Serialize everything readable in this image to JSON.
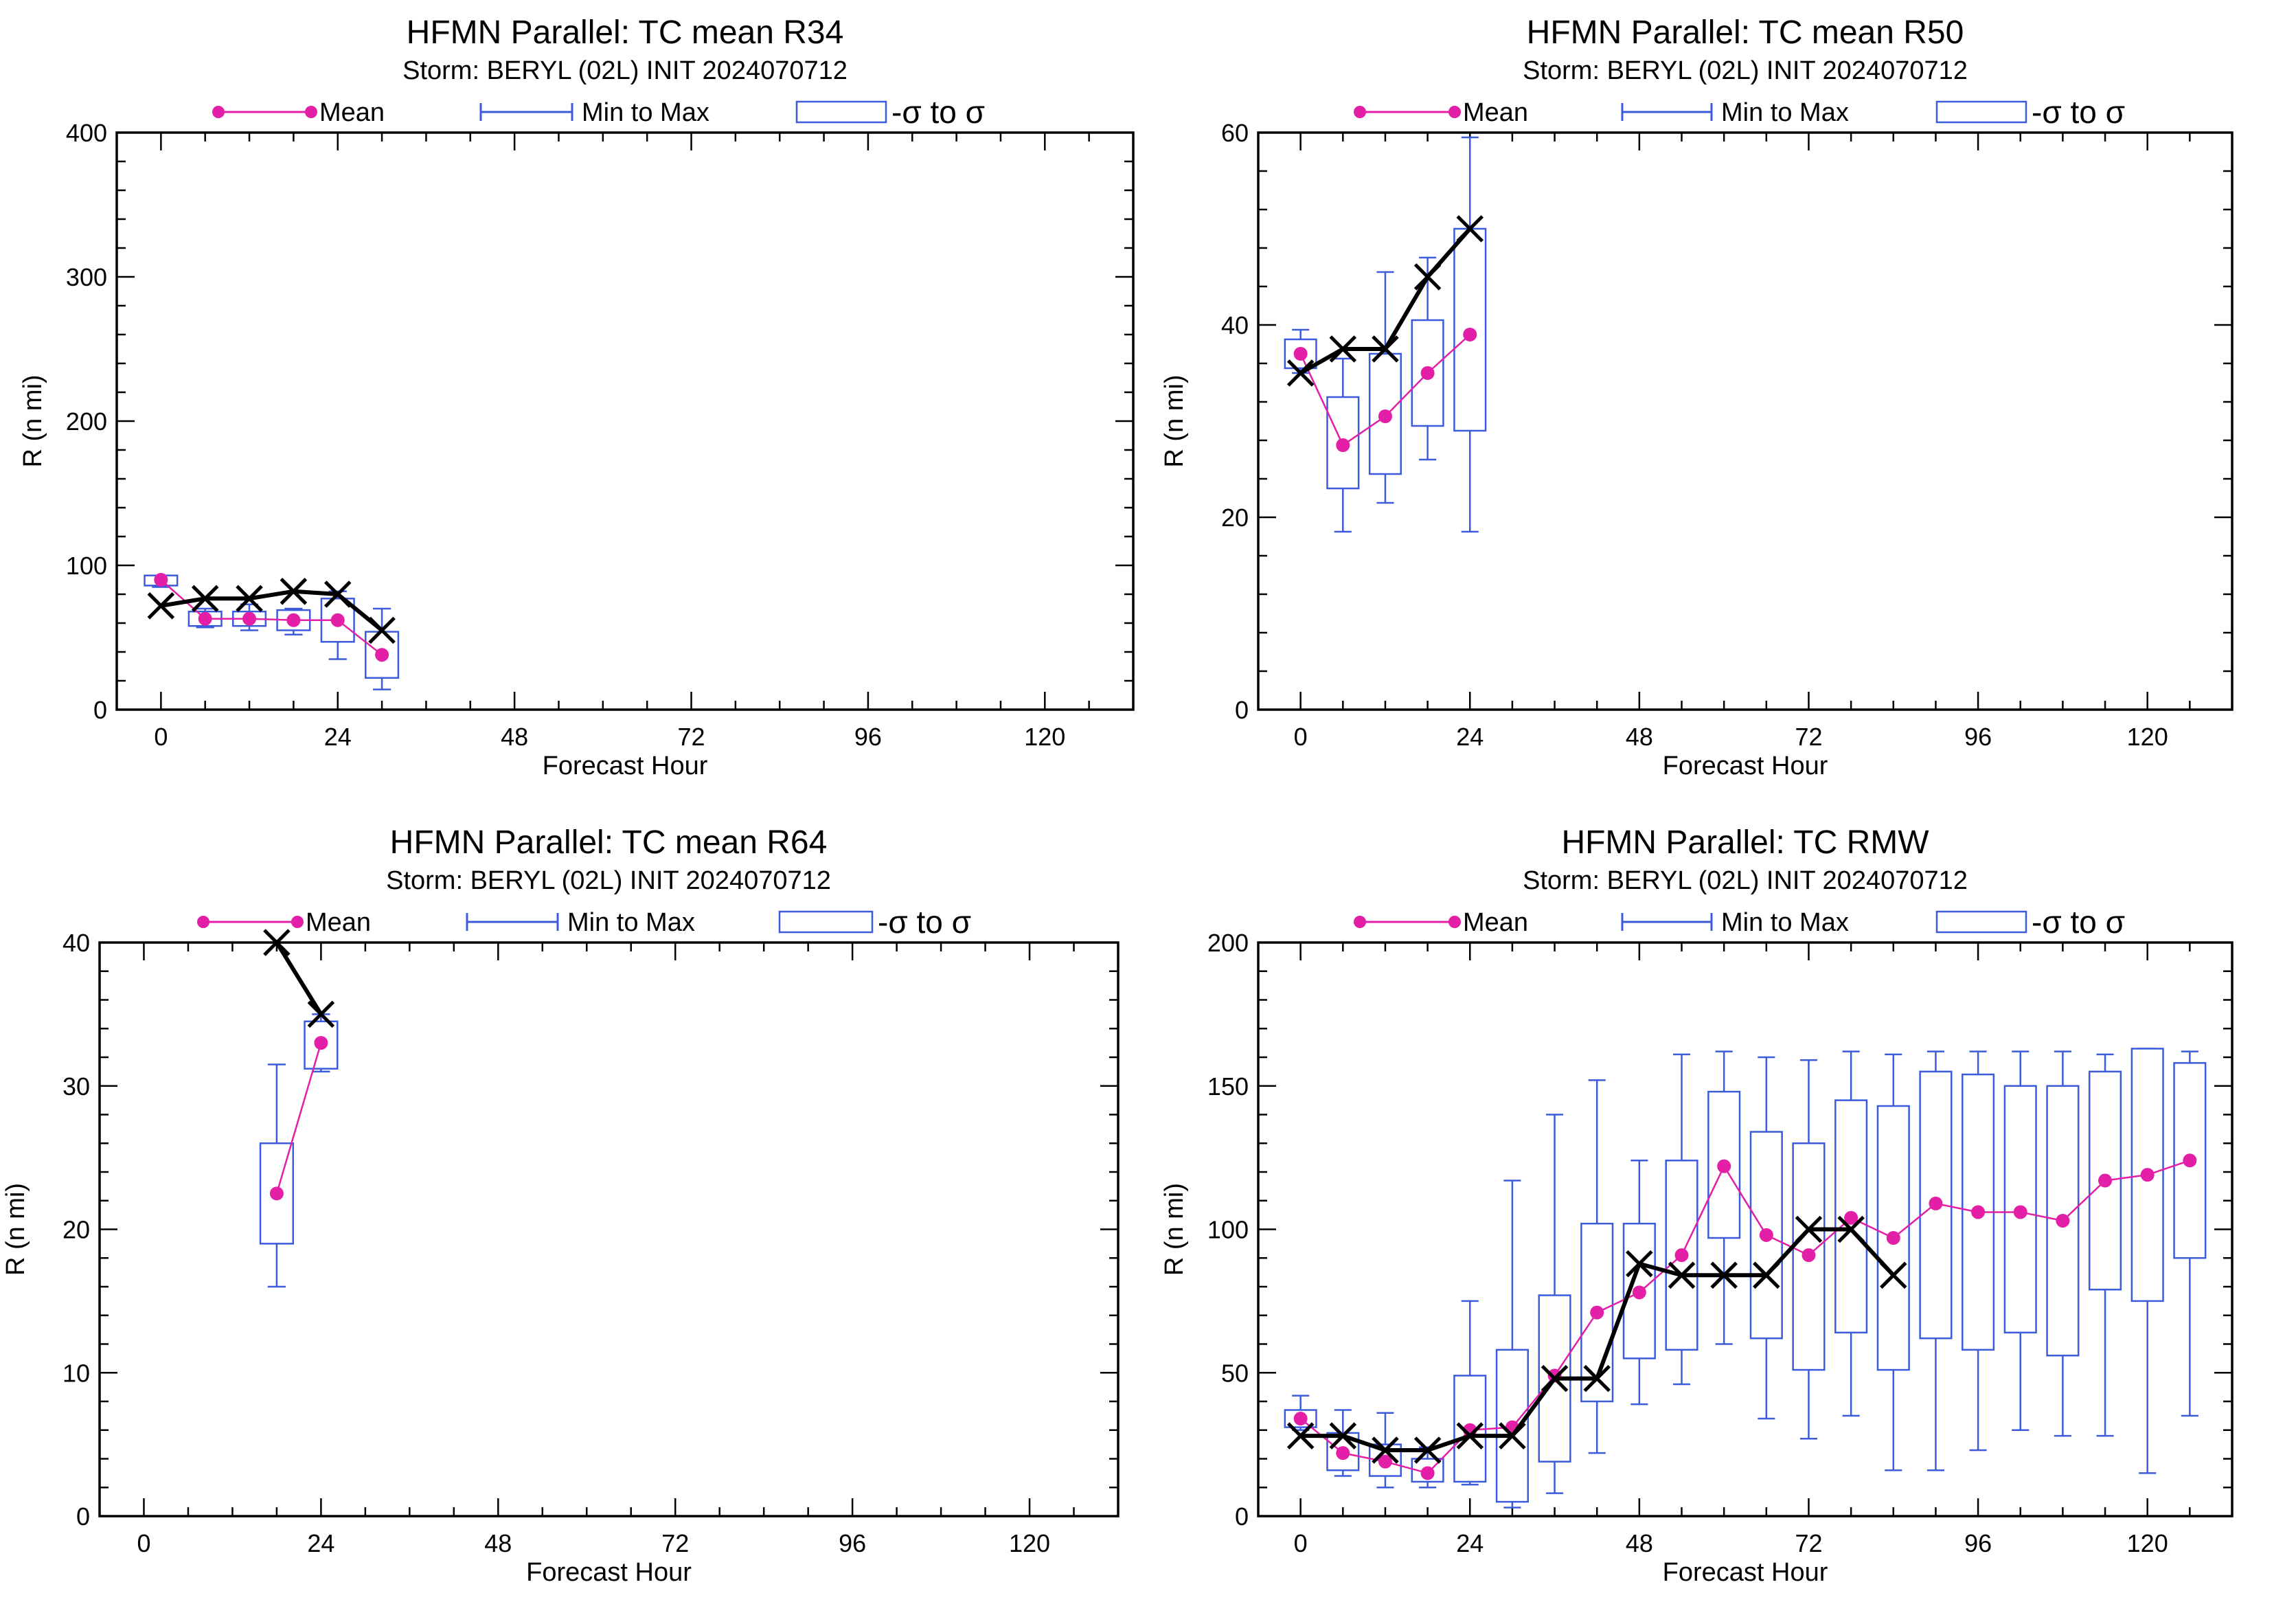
{
  "legend": {
    "mean_label": "Mean",
    "minmax_label": "Min to Max",
    "sigma_label": "-σ to σ",
    "mean_color": "#e21fa6",
    "minmax_color": "#3b5bdb",
    "observed_color": "#000000"
  },
  "chart_data": [
    {
      "type": "box",
      "title": "HFMN Parallel: TC mean R34",
      "subtitle": "Storm: BERYL (02L) INIT 2024070712",
      "xlabel": "Forecast Hour",
      "ylabel": "R (n mi)",
      "xlim": [
        -6,
        132
      ],
      "ylim": [
        0,
        400
      ],
      "xticks": [
        0,
        24,
        48,
        72,
        96,
        120
      ],
      "xtick_labels": [
        "0",
        "24",
        "48",
        "72",
        "96",
        "120"
      ],
      "yticks": [
        0,
        100,
        200,
        300,
        400
      ],
      "ytick_labels": [
        "0",
        "100",
        "200",
        "300",
        "400"
      ],
      "x": [
        0,
        6,
        12,
        18,
        24,
        30
      ],
      "mean": [
        90,
        63,
        63,
        62,
        62,
        38
      ],
      "min": [
        85,
        57,
        55,
        52,
        35,
        14
      ],
      "max": [
        93,
        70,
        73,
        70,
        82,
        70
      ],
      "sigma_low": [
        86,
        58,
        58,
        55,
        47,
        22
      ],
      "sigma_high": [
        93,
        68,
        68,
        69,
        77,
        54
      ],
      "observed_x": [
        0,
        6,
        12,
        18,
        24,
        30
      ],
      "observed": [
        72,
        77,
        77,
        82,
        80,
        55
      ]
    },
    {
      "type": "box",
      "title": "HFMN Parallel: TC mean R50",
      "subtitle": "Storm: BERYL (02L) INIT 2024070712",
      "xlabel": "Forecast Hour",
      "ylabel": "R (n mi)",
      "xlim": [
        -6,
        132
      ],
      "ylim": [
        0,
        60
      ],
      "xticks": [
        0,
        24,
        48,
        72,
        96,
        120
      ],
      "xtick_labels": [
        "0",
        "24",
        "48",
        "72",
        "96",
        "120"
      ],
      "yticks": [
        0,
        20,
        40,
        60
      ],
      "ytick_labels": [
        "0",
        "20",
        "40",
        "60"
      ],
      "x": [
        0,
        6,
        12,
        18,
        24
      ],
      "mean": [
        37,
        27.5,
        30.5,
        35,
        39
      ],
      "min": [
        35,
        18.5,
        21.5,
        26,
        18.5
      ],
      "max": [
        39.5,
        36.5,
        45.5,
        47,
        59.5
      ],
      "sigma_low": [
        35.5,
        23,
        24.5,
        29.5,
        29
      ],
      "sigma_high": [
        38.5,
        32.5,
        37,
        40.5,
        50
      ],
      "observed_x": [
        0,
        6,
        12,
        18,
        24
      ],
      "observed": [
        35,
        37.5,
        37.5,
        45,
        50
      ]
    },
    {
      "type": "box",
      "title": "HFMN Parallel: TC mean R64",
      "subtitle": "Storm: BERYL (02L) INIT 2024070712",
      "xlabel": "Forecast Hour",
      "ylabel": "R (n mi)",
      "xlim": [
        -6,
        132
      ],
      "ylim": [
        0,
        40
      ],
      "xticks": [
        0,
        24,
        48,
        72,
        96,
        120
      ],
      "xtick_labels": [
        "0",
        "24",
        "48",
        "72",
        "96",
        "120"
      ],
      "yticks": [
        0,
        10,
        20,
        30,
        40
      ],
      "ytick_labels": [
        "0",
        "10",
        "20",
        "30",
        "40"
      ],
      "x": [
        18,
        24
      ],
      "mean": [
        22.5,
        33
      ],
      "min": [
        16,
        31
      ],
      "max": [
        31.5,
        35
      ],
      "sigma_low": [
        19,
        31.2
      ],
      "sigma_high": [
        26,
        34.5
      ],
      "observed_x": [
        18,
        24
      ],
      "observed": [
        40,
        35
      ]
    },
    {
      "type": "box",
      "title": "HFMN Parallel: TC RMW",
      "subtitle": "Storm: BERYL (02L) INIT 2024070712",
      "xlabel": "Forecast Hour",
      "ylabel": "R (n mi)",
      "xlim": [
        -6,
        132
      ],
      "ylim": [
        0,
        200
      ],
      "xticks": [
        0,
        24,
        48,
        72,
        96,
        120
      ],
      "xtick_labels": [
        "0",
        "24",
        "48",
        "72",
        "96",
        "120"
      ],
      "yticks": [
        0,
        50,
        100,
        150,
        200
      ],
      "ytick_labels": [
        "0",
        "50",
        "100",
        "150",
        "200"
      ],
      "x": [
        0,
        6,
        12,
        18,
        24,
        30,
        36,
        42,
        48,
        54,
        60,
        66,
        72,
        78,
        84,
        90,
        96,
        102,
        108,
        114,
        120,
        126
      ],
      "mean": [
        34,
        22,
        19,
        15,
        30,
        31,
        49,
        71,
        78,
        91,
        122,
        98,
        91,
        104,
        97,
        109,
        106,
        106,
        103,
        117,
        119,
        124
      ],
      "min": [
        30,
        14,
        10,
        10,
        11,
        3,
        8,
        22,
        39,
        46,
        60,
        34,
        27,
        35,
        16,
        16,
        23,
        30,
        28,
        28,
        15,
        35
      ],
      "max": [
        42,
        37,
        36,
        24,
        75,
        117,
        140,
        152,
        124,
        161,
        162,
        160,
        159,
        162,
        161,
        162,
        162,
        162,
        162,
        161,
        163,
        162
      ],
      "sigma_low": [
        31,
        16,
        14,
        12,
        12,
        5,
        19,
        40,
        55,
        58,
        97,
        62,
        51,
        64,
        51,
        62,
        58,
        64,
        56,
        79,
        75,
        90
      ],
      "sigma_high": [
        37,
        29,
        25,
        20,
        49,
        58,
        77,
        102,
        102,
        124,
        148,
        134,
        130,
        145,
        143,
        155,
        154,
        150,
        150,
        155,
        163,
        158
      ],
      "observed_x": [
        0,
        6,
        12,
        18,
        24,
        30,
        36,
        42,
        48,
        54,
        60,
        66,
        72,
        78,
        84
      ],
      "observed": [
        28,
        28,
        23,
        23,
        28,
        28,
        48,
        48,
        88,
        84,
        84,
        84,
        100,
        100,
        84
      ]
    }
  ]
}
